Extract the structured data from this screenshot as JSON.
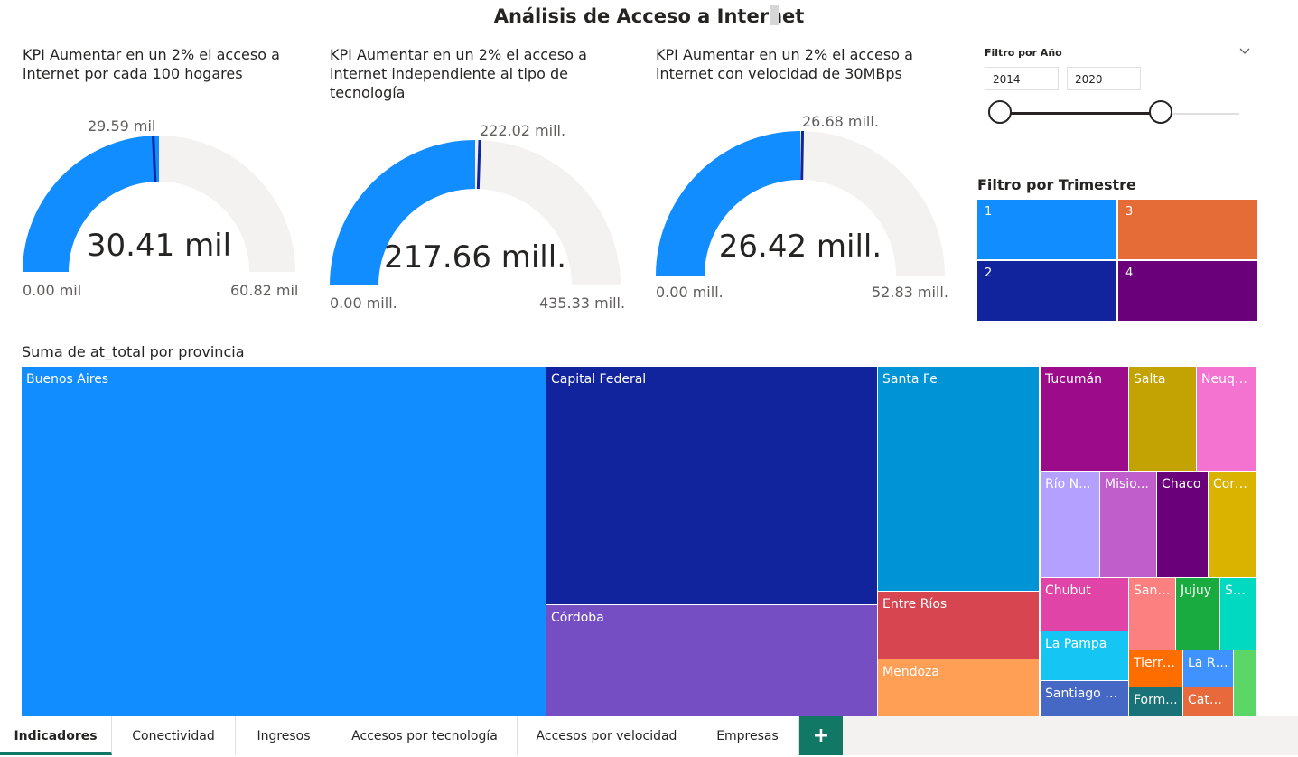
{
  "report_title": "Análisis de Acceso a Internet",
  "kpis": [
    {
      "title": "KPI Aumentar en un 2% el acceso a internet por cada 100 hogares",
      "value_text": "30.41 mil",
      "target_text": "29.59 mil",
      "min_text": "0.00 mil",
      "max_text": "60.82 mil",
      "value": 30.41,
      "target": 29.59,
      "min": 0,
      "max": 60.82
    },
    {
      "title": "KPI Aumentar en un 2% el acceso a internet independiente al tipo de tecnología",
      "value_text": "217.66 mill.",
      "target_text": "222.02 mill.",
      "min_text": "0.00 mill.",
      "max_text": "435.33 mill.",
      "value": 217.66,
      "target": 222.02,
      "min": 0,
      "max": 435.33
    },
    {
      "title": "KPI Aumentar en un 2% el acceso a internet con velocidad de 30MBps",
      "value_text": "26.42 mill.",
      "target_text": "26.68 mill.",
      "min_text": "0.00 mill.",
      "max_text": "52.83 mill.",
      "value": 26.42,
      "target": 26.68,
      "min": 0,
      "max": 52.83
    }
  ],
  "colors": {
    "gauge_fill": "#118dff",
    "gauge_track": "#f3f2f1",
    "gauge_target": "#12239e"
  },
  "year_filter": {
    "label": "Filtro por Año",
    "from": "2014",
    "to": "2020",
    "from_fraction": 0,
    "to_fraction": 0.672
  },
  "quarter_filter": {
    "label": "Filtro por Trimestre",
    "items": [
      {
        "label": "1",
        "color": "#118dff"
      },
      {
        "label": "3",
        "color": "#e66c37"
      },
      {
        "label": "2",
        "color": "#12239e"
      },
      {
        "label": "4",
        "color": "#6b007b"
      }
    ]
  },
  "treemap": {
    "title": "Suma de at_total por provincia",
    "tiles": [
      {
        "label": "Buenos Aires",
        "color": "#118dff"
      },
      {
        "label": "Capital Federal",
        "color": "#12239e"
      },
      {
        "label": "Córdoba",
        "color": "#744ec2"
      },
      {
        "label": "Santa Fe",
        "color": "#0093d5"
      },
      {
        "label": "Entre Ríos",
        "color": "#d64550"
      },
      {
        "label": "Mendoza",
        "color": "#fe9f55"
      },
      {
        "label": "Tucumán",
        "color": "#9b0b8a"
      },
      {
        "label": "Salta",
        "color": "#c3a203"
      },
      {
        "label": "Neuqu...",
        "color": "#f472d0"
      },
      {
        "label": "Río N...",
        "color": "#b4a0ff"
      },
      {
        "label": "Misio...",
        "color": "#c05fcb"
      },
      {
        "label": "Chaco",
        "color": "#6b007b"
      },
      {
        "label": "Corri...",
        "color": "#d9b300"
      },
      {
        "label": "Chubut",
        "color": "#e044a7"
      },
      {
        "label": "San ...",
        "color": "#fd8080"
      },
      {
        "label": "Jujuy",
        "color": "#1aab40"
      },
      {
        "label": "Sa...",
        "color": "#01d9c0"
      },
      {
        "label": "La Pampa",
        "color": "#15c6f4"
      },
      {
        "label": "Tierra...",
        "color": "#fe6d00"
      },
      {
        "label": "La Ri...",
        "color": "#4092ff"
      },
      {
        "label": "",
        "color": "#5bd667"
      },
      {
        "label": "Santiago D...",
        "color": "#4668c5"
      },
      {
        "label": "Form...",
        "color": "#197278"
      },
      {
        "label": "Cata...",
        "color": "#e8693c"
      }
    ]
  },
  "tabs": [
    {
      "label": "Indicadores",
      "active": true
    },
    {
      "label": "Conectividad"
    },
    {
      "label": "Ingresos"
    },
    {
      "label": "Accesos por tecnología"
    },
    {
      "label": "Accesos por velocidad"
    },
    {
      "label": "Empresas"
    }
  ],
  "add_tab_icon": "+"
}
